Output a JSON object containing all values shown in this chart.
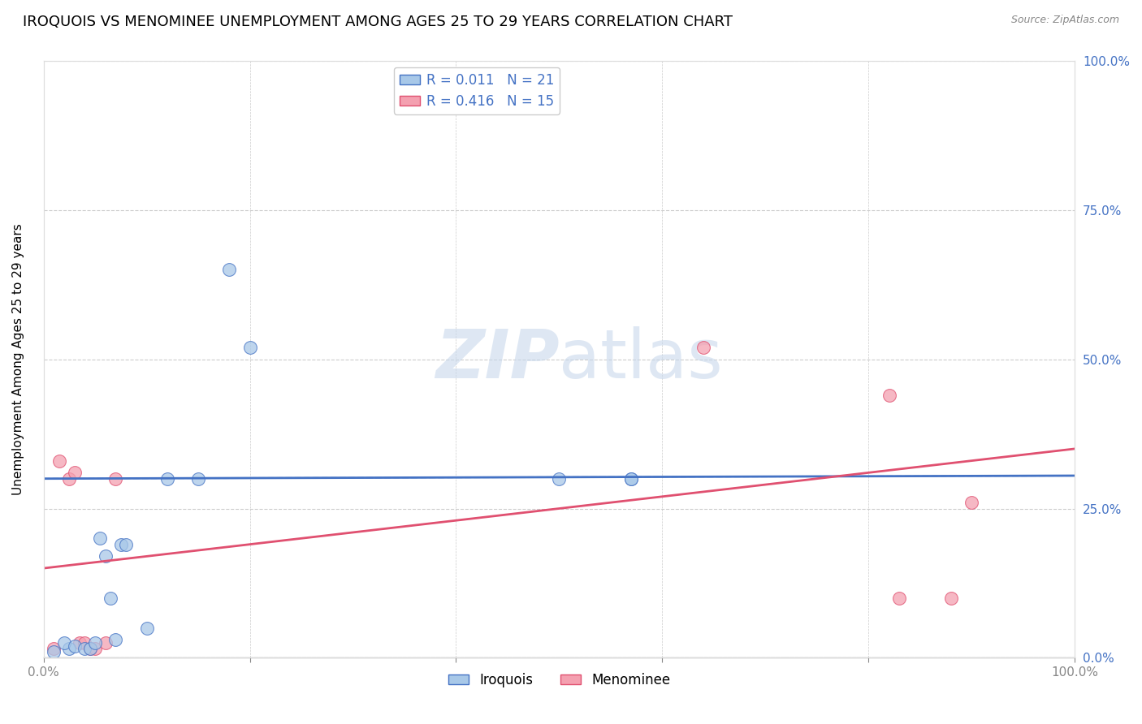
{
  "title": "IROQUOIS VS MENOMINEE UNEMPLOYMENT AMONG AGES 25 TO 29 YEARS CORRELATION CHART",
  "source": "Source: ZipAtlas.com",
  "ylabel": "Unemployment Among Ages 25 to 29 years",
  "iroquois_x": [
    1.0,
    2.5,
    2.0,
    3.0,
    4.0,
    4.5,
    5.0,
    5.5,
    6.0,
    6.5,
    7.0,
    7.5,
    8.0,
    10.0,
    12.0,
    15.0,
    18.0,
    20.0,
    50.0,
    57.0,
    57.0
  ],
  "iroquois_y": [
    1.0,
    1.5,
    2.5,
    2.0,
    1.5,
    1.5,
    2.5,
    20.0,
    17.0,
    10.0,
    3.0,
    19.0,
    19.0,
    5.0,
    30.0,
    30.0,
    65.0,
    52.0,
    30.0,
    30.0,
    30.0
  ],
  "menominee_x": [
    1.0,
    1.5,
    2.5,
    3.0,
    3.5,
    4.0,
    4.5,
    5.0,
    6.0,
    7.0,
    64.0,
    82.0,
    83.0,
    88.0,
    90.0
  ],
  "menominee_y": [
    1.5,
    33.0,
    30.0,
    31.0,
    2.5,
    2.5,
    1.5,
    1.5,
    2.5,
    30.0,
    52.0,
    44.0,
    10.0,
    10.0,
    26.0
  ],
  "iroquois_color": "#a8c8e8",
  "iroquois_edge_color": "#4472c4",
  "menominee_color": "#f4a0b0",
  "menominee_edge_color": "#e05070",
  "iroquois_line_color": "#4472c4",
  "menominee_line_color": "#e05070",
  "iroquois_dash_color": "#a8c8e8",
  "background_color": "#ffffff",
  "grid_color": "#cccccc",
  "watermark_line1": "ZIP",
  "watermark_line2": "atlas",
  "ytick_labels": [
    "0.0%",
    "25.0%",
    "50.0%",
    "75.0%",
    "100.0%"
  ],
  "ytick_values": [
    0,
    25,
    50,
    75,
    100
  ],
  "xtick_labels": [
    "0.0%",
    "",
    "",
    "",
    "",
    "100.0%"
  ],
  "xtick_values": [
    0,
    20,
    40,
    60,
    80,
    100
  ],
  "legend_iroquois": "Iroquois",
  "legend_menominee": "Menominee",
  "r_iroquois": "0.011",
  "n_iroquois": "21",
  "r_menominee": "0.416",
  "n_menominee": "15",
  "axis_color": "#4472c4",
  "title_fontsize": 13,
  "label_fontsize": 11,
  "tick_fontsize": 11,
  "marker_size": 130,
  "iq_line_y0": 30.0,
  "iq_line_y1": 30.5,
  "mn_line_y0": 15.0,
  "mn_line_y1": 35.0
}
